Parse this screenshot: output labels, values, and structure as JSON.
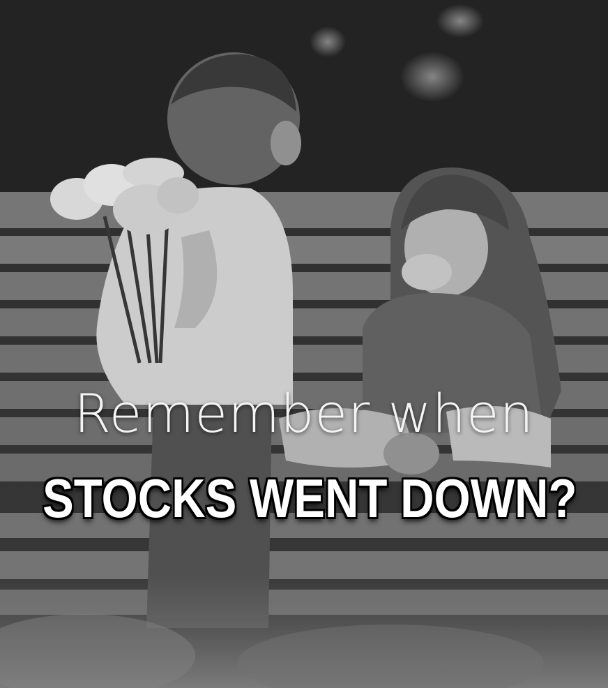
{
  "meme": {
    "top_text": "Remember when",
    "bottom_text": "STOCKS WENT DOWN?"
  },
  "colors": {
    "photo_tint": "#4a4a4a",
    "caption_text": "#ffffff",
    "caption_outline": "#000000"
  }
}
